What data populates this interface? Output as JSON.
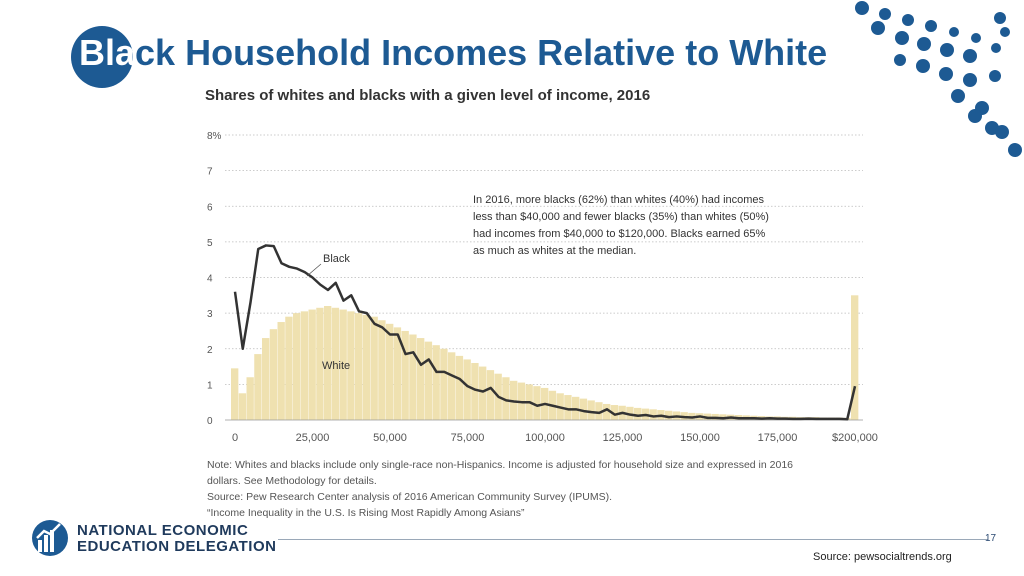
{
  "slide": {
    "title_inverted": "Bla",
    "title_rest": "ck Household Incomes Relative to White",
    "page_number": "17",
    "source": "Source: pewsocialtrends.org"
  },
  "logo": {
    "line1": "NATIONAL ECONOMIC",
    "line2": "EDUCATION DELEGATION"
  },
  "colors": {
    "brand_blue": "#1d5a93",
    "white_series": "#efe1b0",
    "black_series": "#333333"
  },
  "chart_data": {
    "type": "area",
    "title": "Shares of whites and blacks with a given level of income, 2016",
    "ylim": [
      0,
      8
    ],
    "y_ticks": [
      0,
      1,
      2,
      3,
      4,
      5,
      6,
      7,
      8
    ],
    "y_tick_labels": [
      "0",
      "1",
      "2",
      "3",
      "4",
      "5",
      "6",
      "7",
      "8%"
    ],
    "xlim": [
      0,
      200000
    ],
    "x_ticks": [
      0,
      25000,
      50000,
      75000,
      100000,
      125000,
      150000,
      175000,
      200000
    ],
    "x_tick_labels": [
      "0",
      "25,000",
      "50,000",
      "75,000",
      "100,000",
      "125,000",
      "150,000",
      "175,000",
      "$200,000"
    ],
    "grid": true,
    "series": [
      {
        "name": "White",
        "kind": "bar",
        "bin_width": 2500,
        "x": [
          0,
          2500,
          5000,
          7500,
          10000,
          12500,
          15000,
          17500,
          20000,
          22500,
          25000,
          27500,
          30000,
          32500,
          35000,
          37500,
          40000,
          42500,
          45000,
          47500,
          50000,
          52500,
          55000,
          57500,
          60000,
          62500,
          65000,
          67500,
          70000,
          72500,
          75000,
          77500,
          80000,
          82500,
          85000,
          87500,
          90000,
          92500,
          95000,
          97500,
          100000,
          102500,
          105000,
          107500,
          110000,
          112500,
          115000,
          117500,
          120000,
          122500,
          125000,
          127500,
          130000,
          132500,
          135000,
          137500,
          140000,
          142500,
          145000,
          147500,
          150000,
          152500,
          155000,
          157500,
          160000,
          162500,
          165000,
          167500,
          170000,
          172500,
          175000,
          177500,
          180000,
          182500,
          185000,
          187500,
          190000,
          192500,
          195000,
          197500,
          200000
        ],
        "values": [
          1.45,
          0.75,
          1.2,
          1.85,
          2.3,
          2.55,
          2.75,
          2.9,
          3.0,
          3.05,
          3.1,
          3.15,
          3.2,
          3.15,
          3.1,
          3.05,
          3.0,
          2.95,
          2.9,
          2.8,
          2.7,
          2.6,
          2.5,
          2.4,
          2.3,
          2.2,
          2.1,
          2.0,
          1.9,
          1.8,
          1.7,
          1.6,
          1.5,
          1.4,
          1.3,
          1.2,
          1.1,
          1.05,
          1.0,
          0.95,
          0.9,
          0.82,
          0.75,
          0.7,
          0.65,
          0.6,
          0.55,
          0.5,
          0.45,
          0.42,
          0.4,
          0.37,
          0.34,
          0.32,
          0.3,
          0.28,
          0.26,
          0.24,
          0.22,
          0.2,
          0.19,
          0.18,
          0.17,
          0.16,
          0.15,
          0.14,
          0.13,
          0.12,
          0.11,
          0.1,
          0.1,
          0.09,
          0.09,
          0.08,
          0.08,
          0.08,
          0.07,
          0.07,
          0.07,
          0.06,
          3.5
        ]
      },
      {
        "name": "Black",
        "kind": "line",
        "x": [
          0,
          2500,
          5000,
          7500,
          10000,
          12500,
          15000,
          17500,
          20000,
          22500,
          25000,
          27500,
          30000,
          32500,
          35000,
          37500,
          40000,
          42500,
          45000,
          47500,
          50000,
          52500,
          55000,
          57500,
          60000,
          62500,
          65000,
          67500,
          70000,
          72500,
          75000,
          77500,
          80000,
          82500,
          85000,
          87500,
          90000,
          92500,
          95000,
          97500,
          100000,
          102500,
          105000,
          107500,
          110000,
          112500,
          115000,
          117500,
          120000,
          122500,
          125000,
          127500,
          130000,
          132500,
          135000,
          137500,
          140000,
          142500,
          145000,
          147500,
          150000,
          152500,
          155000,
          157500,
          160000,
          162500,
          165000,
          167500,
          170000,
          172500,
          175000,
          177500,
          180000,
          182500,
          185000,
          187500,
          190000,
          192500,
          195000,
          197500,
          200000
        ],
        "values": [
          3.6,
          2.0,
          3.3,
          4.8,
          4.9,
          4.88,
          4.4,
          4.3,
          4.25,
          4.15,
          4.0,
          3.8,
          3.65,
          3.85,
          3.35,
          3.5,
          3.05,
          3.0,
          2.7,
          2.6,
          2.4,
          2.4,
          1.85,
          1.9,
          1.55,
          1.7,
          1.35,
          1.35,
          1.25,
          1.15,
          0.95,
          0.85,
          0.8,
          0.9,
          0.65,
          0.55,
          0.52,
          0.5,
          0.5,
          0.4,
          0.45,
          0.4,
          0.35,
          0.3,
          0.3,
          0.25,
          0.22,
          0.2,
          0.3,
          0.15,
          0.2,
          0.15,
          0.12,
          0.14,
          0.1,
          0.12,
          0.08,
          0.1,
          0.08,
          0.07,
          0.1,
          0.06,
          0.06,
          0.05,
          0.07,
          0.05,
          0.05,
          0.05,
          0.04,
          0.05,
          0.04,
          0.04,
          0.03,
          0.03,
          0.04,
          0.03,
          0.03,
          0.03,
          0.03,
          0.02,
          0.95
        ]
      }
    ],
    "annotations": [
      {
        "label": "annotation-text",
        "lines": [
          "In 2016, more blacks (62%) than whites (40%) had incomes",
          "less than $40,000 and fewer blacks (35%) than whites (50%)",
          "had incomes from $40,000 to $120,000. Blacks earned 65%",
          "as much as whites at the median."
        ]
      }
    ],
    "notes": [
      "Note: Whites and blacks include only single-race non-Hispanics. Income is adjusted for household size and expressed in 2016",
      "dollars. See Methodology for details.",
      "Source: Pew Research Center analysis of 2016 American Community Survey (IPUMS).",
      "“Income Inequality in the U.S. Is Rising Most Rapidly Among Asians”"
    ]
  }
}
